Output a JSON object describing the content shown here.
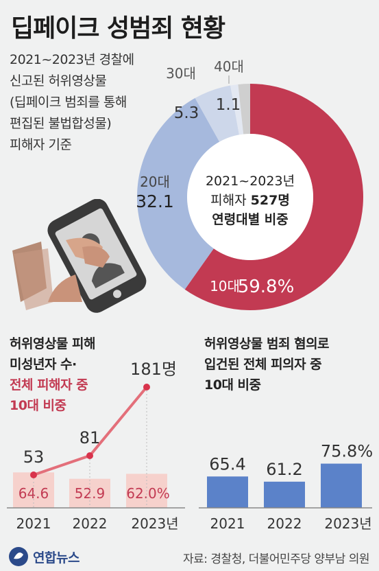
{
  "title": "딥페이크 성범죄 현황",
  "description": [
    "2021~2023년 경찰에",
    "신고된 허위영상물",
    "(딥페이크 범죄를 통해",
    "편집된 불법합성물)",
    "피해자 기준"
  ],
  "donut": {
    "center": {
      "line1": "2021~2023년",
      "line2_prefix": "피해자 ",
      "line2_bold": "527명",
      "line3": "연령대별 비중"
    }
  },
  "left_chart": {
    "title_lines": [
      "허위영상물 피해",
      "미성년자 수·"
    ],
    "red_lines": [
      "전체 피해자 중",
      "10대 비중"
    ]
  },
  "right_chart": {
    "title_lines": [
      "허위영상물 범죄 혐의로",
      "입건된 전체 피의자 중",
      "10대 비중"
    ]
  },
  "colors": {
    "red": "#c23a52",
    "blue": "#a6b9dd",
    "light_blue": "#cdd7ea",
    "lighter_blue": "#e3e8f2",
    "gray": "#cfcfcf",
    "bar_blue": "#5b82c9",
    "pink_bar": "#f6d1cc",
    "line": "#e36f7a"
  },
  "chart_data": [
    {
      "type": "pie",
      "categories": [
        "10대",
        "20대",
        "30대",
        "40대"
      ],
      "values": [
        59.8,
        32.1,
        5.3,
        1.1
      ],
      "value_labels": [
        "59.8%",
        "32.1",
        "5.3",
        "1.1"
      ]
    },
    {
      "type": "bar",
      "categories": [
        "2021",
        "2022",
        "2023년"
      ],
      "values": [
        64.6,
        52.9,
        62.0
      ],
      "value_labels": [
        "64.6",
        "52.9",
        "62.0%"
      ],
      "line": {
        "values": [
          53,
          81,
          181
        ],
        "value_labels": [
          "53",
          "81",
          "181명"
        ]
      }
    },
    {
      "type": "bar",
      "categories": [
        "2021",
        "2022",
        "2023년"
      ],
      "values": [
        65.4,
        61.2,
        75.8
      ],
      "value_labels": [
        "65.4",
        "61.2",
        "75.8%"
      ]
    }
  ],
  "footer": {
    "logo": "연합뉴스",
    "source": "자료: 경찰청, 더불어민주당 양부남 의원"
  }
}
